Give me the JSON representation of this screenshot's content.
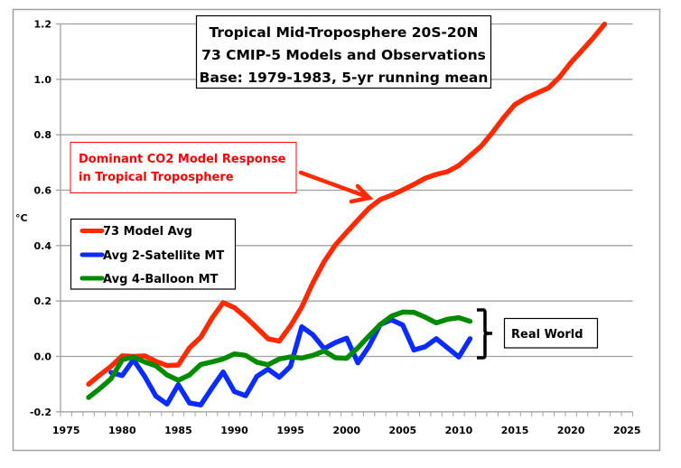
{
  "chart_data": {
    "type": "line",
    "title": [
      "Tropical Mid-Troposphere 20S-20N",
      "73 CMIP-5 Models and Observations",
      "Base: 1979-1983, 5-yr running mean"
    ],
    "xlabel": "",
    "ylabel": "°C",
    "xlim": [
      1975,
      2025
    ],
    "ylim": [
      -0.2,
      1.2
    ],
    "x_ticks": [
      "1975",
      "1980",
      "1985",
      "1990",
      "1995",
      "2000",
      "2005",
      "2010",
      "2015",
      "2020",
      "2025"
    ],
    "y_ticks": [
      "-0.2",
      "0.0",
      "0.2",
      "0.4",
      "0.6",
      "0.8",
      "1.0",
      "1.2"
    ],
    "grid": "horizontal",
    "legend_position": "left-middle",
    "series": [
      {
        "name": "73 Model Avg",
        "color": "#ff2a00",
        "x": [
          1977,
          1978,
          1979,
          1980,
          1981,
          1982,
          1983,
          1984,
          1985,
          1986,
          1987,
          1988,
          1989,
          1990,
          1991,
          1992,
          1993,
          1994,
          1995,
          1996,
          1997,
          1998,
          1999,
          2000,
          2001,
          2002,
          2003,
          2004,
          2005,
          2006,
          2007,
          2008,
          2009,
          2010,
          2011,
          2012,
          2013,
          2014,
          2015,
          2016,
          2017,
          2018,
          2019,
          2020,
          2021,
          2022,
          2023
        ],
        "values": [
          -0.1,
          -0.067,
          -0.036,
          0.002,
          0.0,
          0.002,
          -0.018,
          -0.033,
          -0.031,
          0.031,
          0.069,
          0.138,
          0.194,
          0.176,
          0.142,
          0.103,
          0.064,
          0.055,
          0.11,
          0.178,
          0.266,
          0.342,
          0.402,
          0.448,
          0.492,
          0.535,
          0.566,
          0.582,
          0.601,
          0.621,
          0.643,
          0.657,
          0.667,
          0.689,
          0.724,
          0.759,
          0.808,
          0.862,
          0.909,
          0.933,
          0.951,
          0.969,
          1.009,
          1.061,
          1.105,
          1.15,
          1.199
        ]
      },
      {
        "name": "Avg 2-Satellite MT",
        "color": "#0a2cff",
        "x": [
          1979,
          1980,
          1981,
          1982,
          1983,
          1984,
          1985,
          1986,
          1987,
          1988,
          1989,
          1990,
          1991,
          1992,
          1993,
          1994,
          1995,
          1996,
          1997,
          1998,
          1999,
          2000,
          2001,
          2002,
          2003,
          2004,
          2005,
          2006,
          2007,
          2008,
          2009,
          2010,
          2011
        ],
        "values": [
          -0.058,
          -0.069,
          -0.012,
          -0.072,
          -0.143,
          -0.172,
          -0.102,
          -0.168,
          -0.175,
          -0.114,
          -0.056,
          -0.127,
          -0.142,
          -0.072,
          -0.046,
          -0.075,
          -0.036,
          0.107,
          0.078,
          0.028,
          0.05,
          0.066,
          -0.023,
          0.037,
          0.115,
          0.132,
          0.113,
          0.023,
          0.035,
          0.064,
          0.031,
          -0.002,
          0.064
        ]
      },
      {
        "name": "Avg 4-Balloon MT",
        "color": "#008a00",
        "x": [
          1977,
          1978,
          1979,
          1980,
          1981,
          1982,
          1983,
          1984,
          1985,
          1986,
          1987,
          1988,
          1989,
          1990,
          1991,
          1992,
          1993,
          1994,
          1995,
          1996,
          1997,
          1998,
          1999,
          2000,
          2001,
          2002,
          2003,
          2004,
          2005,
          2006,
          2007,
          2008,
          2009,
          2010,
          2011
        ],
        "values": [
          -0.148,
          -0.116,
          -0.081,
          -0.012,
          -0.002,
          -0.02,
          -0.034,
          -0.067,
          -0.086,
          -0.067,
          -0.029,
          -0.02,
          -0.009,
          0.009,
          0.004,
          -0.021,
          -0.03,
          -0.009,
          -0.002,
          -0.006,
          0.004,
          0.02,
          -0.005,
          -0.007,
          0.031,
          0.074,
          0.115,
          0.145,
          0.16,
          0.159,
          0.142,
          0.121,
          0.134,
          0.14,
          0.127
        ]
      }
    ],
    "annotations": {
      "co2_note": [
        "Dominant CO2 Model Response",
        "in Tropical Troposphere"
      ],
      "real_world": "Real World"
    }
  }
}
